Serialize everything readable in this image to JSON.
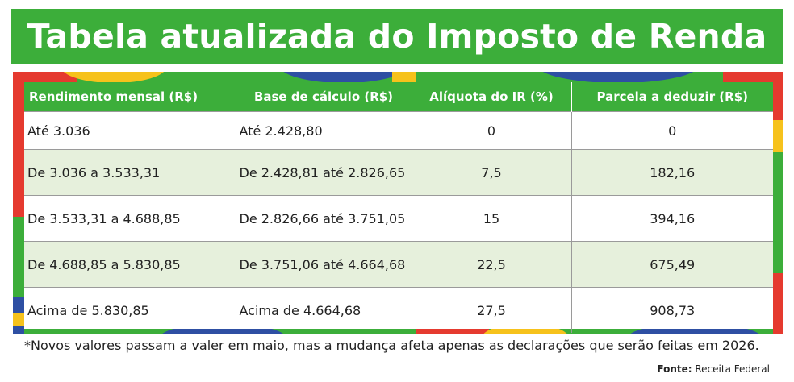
{
  "title": "Tabela atualizada do Imposto de Renda",
  "colors": {
    "green": "#3cae3a",
    "light_green_row": "#e6f0dc",
    "red": "#e53a2f",
    "blue": "#2e4fa3",
    "yellow": "#f6c21c"
  },
  "table": {
    "headers": [
      "Rendimento mensal (R$)",
      "Base de cálculo (R$)",
      "Alíquota do IR (%)",
      "Parcela a deduzir (R$)"
    ],
    "rows": [
      [
        "Até 3.036",
        "Até 2.428,80",
        "0",
        "0"
      ],
      [
        "De 3.036 a 3.533,31",
        "De 2.428,81 até 2.826,65",
        "7,5",
        "182,16"
      ],
      [
        "De 3.533,31 a 4.688,85",
        "De 2.826,66 até 3.751,05",
        "15",
        "394,16"
      ],
      [
        "De 4.688,85 a 5.830,85",
        "De 3.751,06 até 4.664,68",
        "22,5",
        "675,49"
      ],
      [
        "Acima de 5.830,85",
        "Acima de 4.664,68",
        "27,5",
        "908,73"
      ]
    ]
  },
  "footnote": "*Novos valores passam a valer em maio, mas a mudança afeta apenas as declarações que serão feitas em 2026.",
  "source": {
    "label": "Fonte:",
    "value": "Receita Federal"
  }
}
